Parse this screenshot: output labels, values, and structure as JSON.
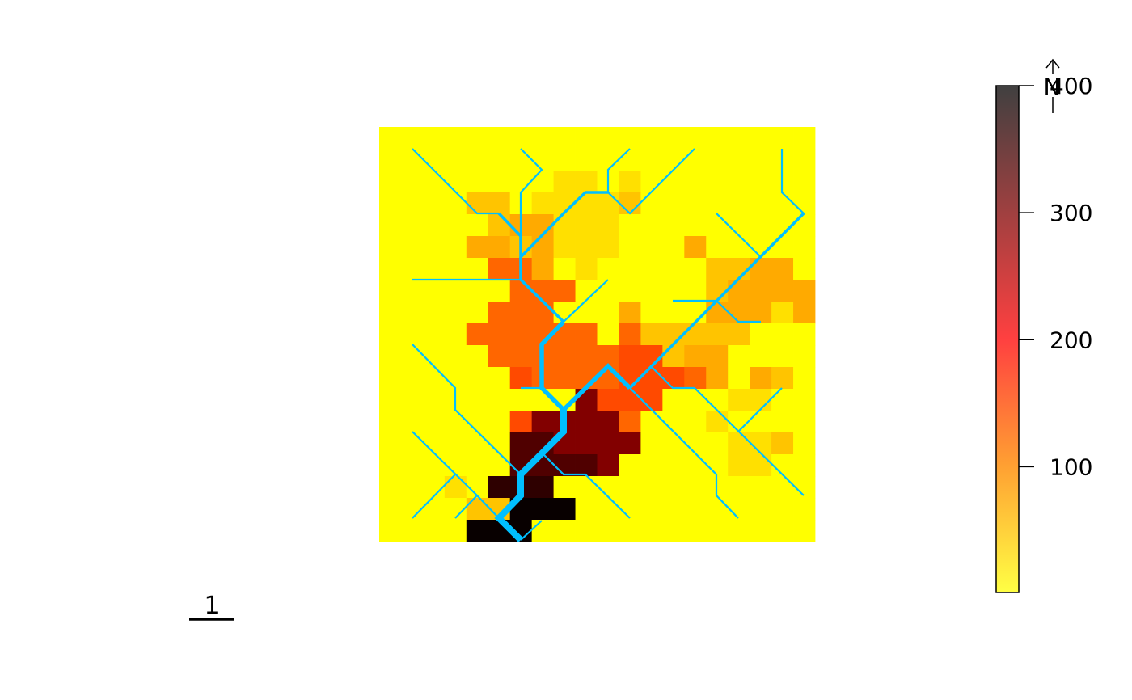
{
  "legend": {
    "ticks": [
      {
        "value": 100,
        "label": "100"
      },
      {
        "value": 200,
        "label": "200"
      },
      {
        "value": 300,
        "label": "300"
      },
      {
        "value": 400,
        "label": "400"
      }
    ],
    "range": [
      1,
      400
    ],
    "colors": {
      "low": "#ffff44",
      "mid1": "#ffa032",
      "mid2": "#ff4040",
      "high": "#404040"
    }
  },
  "scale_bar": {
    "label": "1"
  },
  "north_arrow": {
    "label": "N"
  },
  "colors": {
    "stream": "#00bfff",
    "background_cell": "#ffff00"
  },
  "raster": {
    "columns": 20,
    "rows": 19,
    "shades": {
      "Y": "#ffff00",
      "l": "#ffe000",
      "a": "#ffc400",
      "b": "#ffaa00",
      "o": "#ff6600",
      "r": "#ff4a00",
      "d": "#820000",
      "e": "#500000",
      "f": "#2e0000",
      "k": "#080000"
    },
    "grid": [
      "YYYYYYYYYYYYYYYYYYYY",
      "YYYYYYYYYYYYYYYYYYYY",
      "YYYYYYYYllYlYYYYYYYY",
      "YYYYaaYllllaYYYYYYYY",
      "YYYYYabblllYYYYYYYYY",
      "YYYYbbablllYYYbYYYYY",
      "YYYYYoobYlYYYYYaabbY",
      "YYYYYYoooYYYYYYabbbb",
      "YYYYYoooYYYbYYYbbblb",
      "YYYYooooooYoaaaaaYYY",
      "YYYYYoooooorrabbYYYY",
      "YYYYYYroooorrrobYbaY",
      "YYYYYYYYYdrrrYYYllYY",
      "YYYYYYrddddoYYYlYYYY",
      "YYYYYYeeddddYYYYllaY",
      "YYYYYYeeeedYYYYYllYY",
      "YYYlYfffYYYYYYYYYYYY",
      "YYYYaakkkYYYYYYYYYYY",
      "YYYYkkkYYYYYYYYYYYYY"
    ]
  },
  "streams": [
    {
      "order": 1,
      "points": [
        [
          510,
          184
        ],
        [
          590,
          264
        ],
        [
          617,
          264
        ]
      ]
    },
    {
      "order": 1,
      "points": [
        [
          644,
          184
        ],
        [
          670,
          210
        ],
        [
          644,
          238
        ],
        [
          644,
          318
        ]
      ]
    },
    {
      "order": 1,
      "points": [
        [
          779,
          184
        ],
        [
          752,
          210
        ],
        [
          752,
          238
        ],
        [
          779,
          264
        ],
        [
          859,
          184
        ]
      ]
    },
    {
      "order": 1,
      "points": [
        [
          967,
          184
        ],
        [
          967,
          238
        ],
        [
          994,
          264
        ],
        [
          941,
          318
        ],
        [
          886,
          264
        ]
      ]
    },
    {
      "order": 1,
      "points": [
        [
          510,
          346
        ],
        [
          644,
          346
        ]
      ]
    },
    {
      "order": 1,
      "points": [
        [
          752,
          346
        ],
        [
          697,
          398
        ]
      ]
    },
    {
      "order": 1,
      "points": [
        [
          832,
          372
        ],
        [
          886,
          372
        ]
      ]
    },
    {
      "order": 1,
      "points": [
        [
          886,
          372
        ],
        [
          913,
          398
        ],
        [
          941,
          398
        ]
      ]
    },
    {
      "order": 1,
      "points": [
        [
          510,
          426
        ],
        [
          563,
          480
        ],
        [
          563,
          507
        ],
        [
          644,
          587
        ]
      ]
    },
    {
      "order": 1,
      "points": [
        [
          644,
          480
        ],
        [
          670,
          480
        ]
      ]
    },
    {
      "order": 1,
      "points": [
        [
          510,
          534
        ],
        [
          590,
          613
        ],
        [
          617,
          641
        ]
      ]
    },
    {
      "order": 1,
      "points": [
        [
          563,
          587
        ],
        [
          510,
          641
        ]
      ]
    },
    {
      "order": 1,
      "points": [
        [
          590,
          613
        ],
        [
          563,
          641
        ]
      ]
    },
    {
      "order": 1,
      "points": [
        [
          670,
          560
        ],
        [
          697,
          587
        ],
        [
          724,
          587
        ],
        [
          779,
          641
        ]
      ]
    },
    {
      "order": 1,
      "points": [
        [
          779,
          480
        ],
        [
          886,
          587
        ],
        [
          886,
          613
        ],
        [
          913,
          641
        ]
      ]
    },
    {
      "order": 1,
      "points": [
        [
          805,
          453
        ],
        [
          832,
          480
        ],
        [
          859,
          480
        ],
        [
          994,
          613
        ]
      ]
    },
    {
      "order": 1,
      "points": [
        [
          967,
          480
        ],
        [
          913,
          534
        ]
      ]
    },
    {
      "order": 1,
      "points": [
        [
          670,
          644
        ],
        [
          644,
          668
        ]
      ]
    },
    {
      "order": 2,
      "points": [
        [
          617,
          264
        ],
        [
          644,
          292
        ],
        [
          644,
          318
        ],
        [
          697,
          264
        ],
        [
          724,
          238
        ],
        [
          752,
          238
        ]
      ]
    },
    {
      "order": 2,
      "points": [
        [
          644,
          318
        ],
        [
          644,
          346
        ],
        [
          697,
          398
        ]
      ]
    },
    {
      "order": 2,
      "points": [
        [
          994,
          264
        ],
        [
          779,
          480
        ]
      ]
    },
    {
      "order": 3,
      "points": [
        [
          697,
          398
        ],
        [
          670,
          426
        ],
        [
          670,
          480
        ],
        [
          697,
          507
        ],
        [
          752,
          453
        ],
        [
          779,
          480
        ]
      ]
    },
    {
      "order": 4,
      "points": [
        [
          697,
          507
        ],
        [
          697,
          534
        ],
        [
          644,
          587
        ],
        [
          644,
          613
        ],
        [
          617,
          641
        ],
        [
          644,
          668
        ]
      ]
    }
  ]
}
